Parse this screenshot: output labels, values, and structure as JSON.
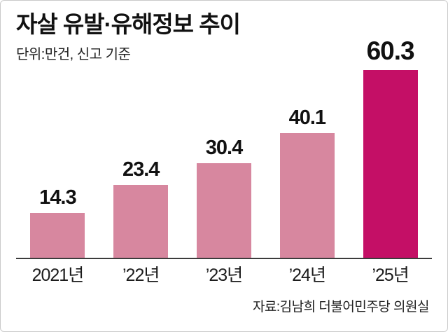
{
  "chart": {
    "title": "자살 유발·유해정보 추이",
    "subtitle": "단위:만건, 신고 기준",
    "source": "자료:김남희 더불어민주당 의원실"
  },
  "chart_data": {
    "type": "bar",
    "title": "자살 유발·유해정보 추이",
    "subtitle": "단위:만건, 신고 기준",
    "categories": [
      "2021년",
      "’22년",
      "’23년",
      "’24년",
      "’25년"
    ],
    "values": [
      14.3,
      23.4,
      30.4,
      40.1,
      60.3
    ],
    "value_labels": [
      "14.3",
      "23.4",
      "30.4",
      "40.1",
      "60.3"
    ],
    "xlabel": "",
    "ylabel": "만건",
    "ylim": [
      0,
      65
    ],
    "grid": false,
    "legend": "none",
    "highlight_index": 4,
    "colors": {
      "bar": "#d7879f",
      "bar_highlight": "#c40f66",
      "baseline": "#3c3c3c",
      "text": "#111111"
    },
    "source": "자료:김남희 더불어민주당 의원실"
  }
}
